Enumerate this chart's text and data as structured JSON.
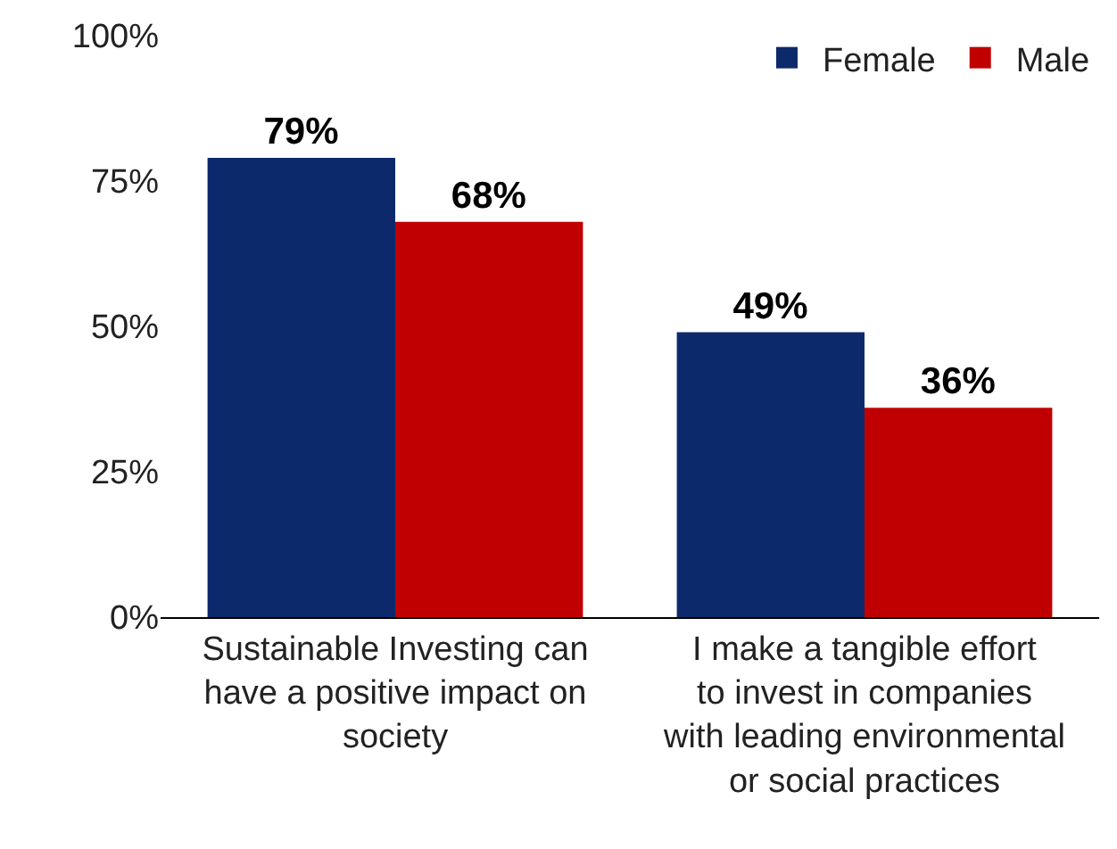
{
  "chart_data": {
    "type": "bar",
    "categories": [
      "Sustainable Investing can have a positive impact on society",
      "I make a tangible effort to invest in companies with leading environmental or social practices"
    ],
    "series": [
      {
        "name": "Female",
        "color": "#0c2a6b",
        "values": [
          79,
          49
        ],
        "value_labels": [
          "79%",
          "49%"
        ]
      },
      {
        "name": "Male",
        "color": "#c00000",
        "values": [
          68,
          36
        ],
        "value_labels": [
          "68%",
          "36%"
        ]
      }
    ],
    "ylim": [
      0,
      100
    ],
    "yticks": [
      {
        "value": 0,
        "label": "0%"
      },
      {
        "value": 25,
        "label": "25%"
      },
      {
        "value": 50,
        "label": "50%"
      },
      {
        "value": 75,
        "label": "75%"
      },
      {
        "value": 100,
        "label": "100%"
      }
    ],
    "grid": false,
    "legend": "top right"
  }
}
